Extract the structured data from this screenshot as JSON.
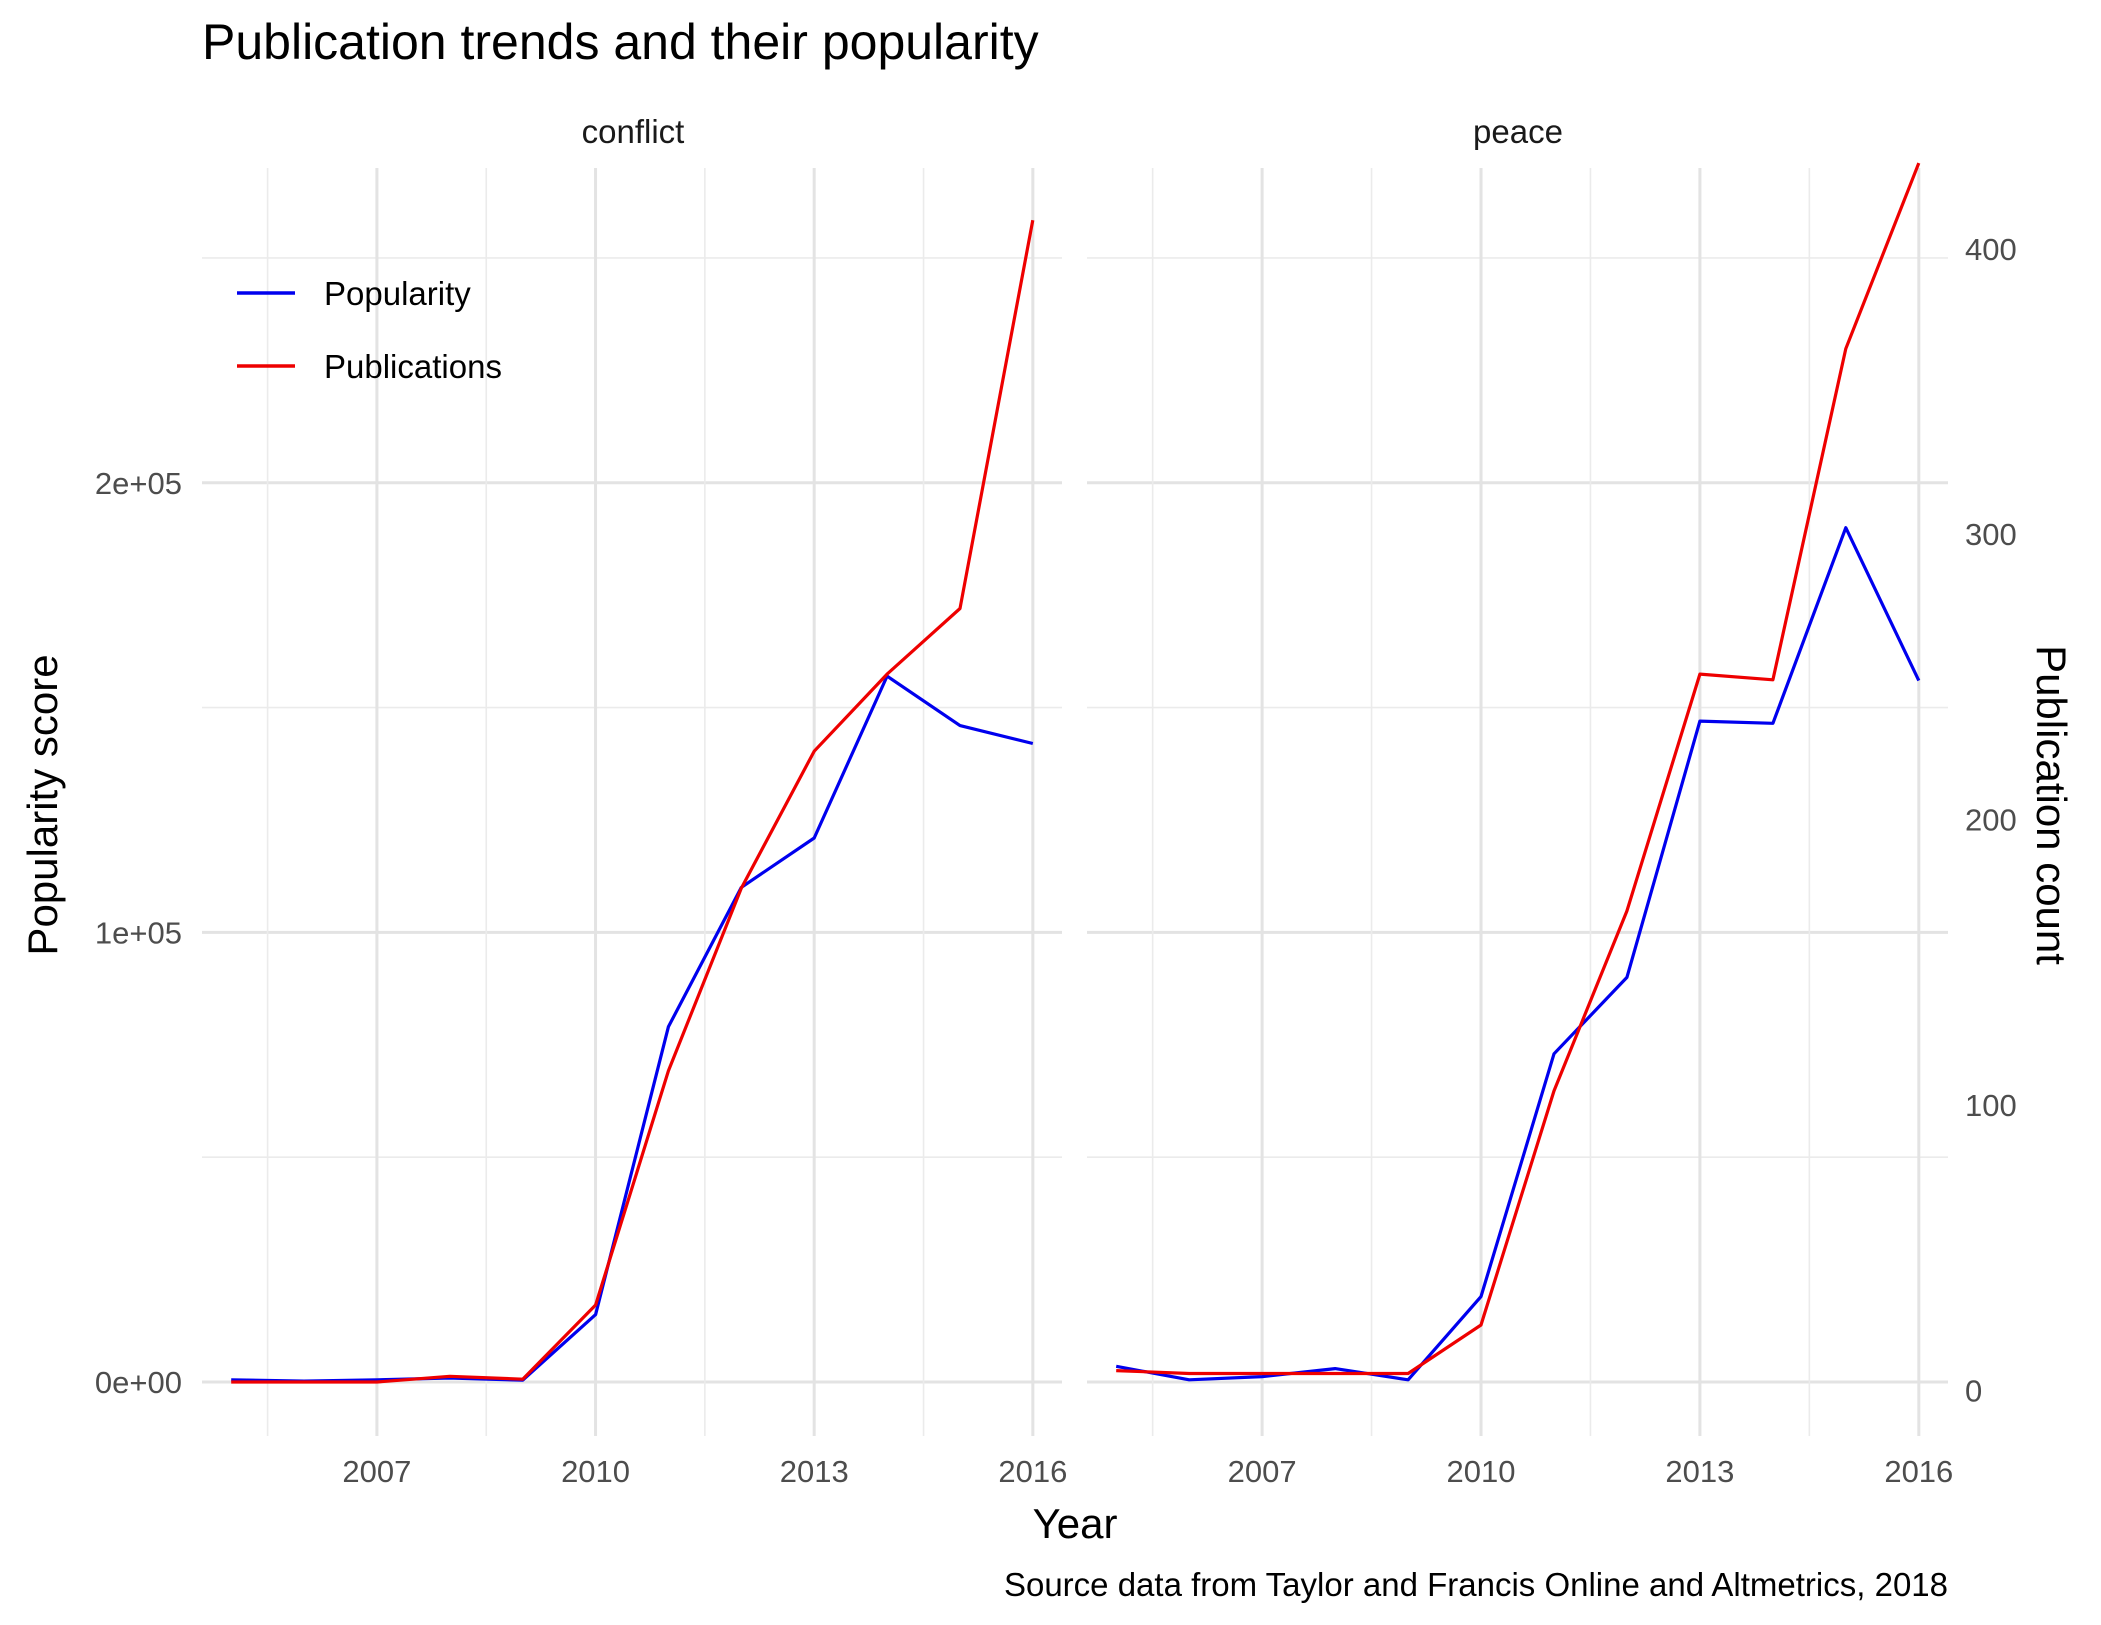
{
  "chart_data": {
    "type": "line",
    "title": "Publication trends and their popularity",
    "caption": "Source data from Taylor and Francis Online and Altmetrics, 2018",
    "xlabel": "Year",
    "ylabel_left": "Popularity score",
    "ylabel_right": "Publication count",
    "left_axis": {
      "range": [
        -12000,
        270000
      ],
      "ticks": [
        0,
        100000,
        200000
      ],
      "tick_labels": [
        "0e+00",
        "1e+05",
        "2e+05"
      ]
    },
    "right_axis": {
      "range": [
        -15.9,
        428.3
      ],
      "ticks": [
        0,
        100,
        200,
        300,
        400
      ],
      "tick_labels": [
        "0",
        "100",
        "200",
        "300",
        "400"
      ]
    },
    "x_axis": {
      "range": [
        2004.6,
        2016.4
      ],
      "ticks": [
        2007,
        2010,
        2013,
        2016
      ],
      "tick_labels": [
        "2007",
        "2010",
        "2013",
        "2016"
      ]
    },
    "grid": true,
    "legend": {
      "position": "top-left",
      "entries": [
        {
          "label": "Popularity",
          "color": "#0000ee"
        },
        {
          "label": "Publications",
          "color": "#ee0000"
        }
      ]
    },
    "panels": [
      {
        "name": "conflict",
        "x": [
          2005,
          2006,
          2007,
          2008,
          2009,
          2010,
          2011,
          2012,
          2013,
          2014,
          2015,
          2016
        ],
        "series": [
          {
            "name": "Popularity",
            "axis": "left",
            "color": "#0000ee",
            "values": [
              500,
              200,
              500,
              900,
              400,
              15000,
              79000,
              110000,
              121000,
              157000,
              146000,
              142000
            ]
          },
          {
            "name": "Publications",
            "axis": "right",
            "color": "#ee0000",
            "values": [
              3,
              3,
              3,
              5,
              4,
              30,
              112,
              176,
              224,
              251,
              274,
              410
            ]
          }
        ]
      },
      {
        "name": "peace",
        "x": [
          2005,
          2006,
          2007,
          2008,
          2009,
          2010,
          2011,
          2012,
          2013,
          2014,
          2015,
          2016
        ],
        "series": [
          {
            "name": "Popularity",
            "axis": "left",
            "color": "#0000ee",
            "values": [
              3500,
              500,
              1200,
              3000,
              500,
              19000,
              73000,
              90000,
              147000,
              146500,
              190000,
              156000
            ]
          },
          {
            "name": "Publications",
            "axis": "right",
            "color": "#ee0000",
            "values": [
              7,
              6,
              6,
              6,
              6,
              23,
              105,
              168,
              251,
              249,
              365,
              430
            ]
          }
        ]
      }
    ]
  }
}
